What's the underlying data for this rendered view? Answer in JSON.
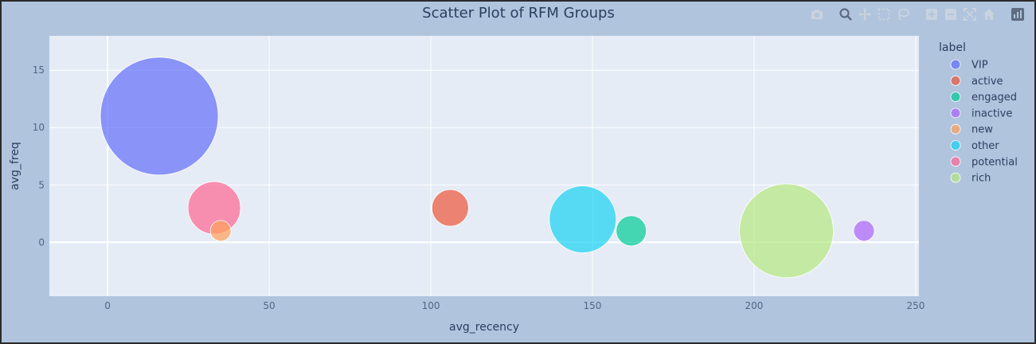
{
  "modebar": {
    "icons": [
      "camera-icon",
      "zoom-icon",
      "pan-icon",
      "box-select-icon",
      "lasso-select-icon",
      "zoom-in-icon",
      "zoom-out-icon",
      "autoscale-icon",
      "reset-axes-icon",
      "plotly-logo-icon"
    ]
  },
  "colors": {
    "paper": "#b0c4de",
    "plot_bg": "#e5ecf6",
    "grid": "#ffffff",
    "text": "#2a3f5f",
    "tick_text": "#506784",
    "modebar_icon": "#c9d3df",
    "modebar_logo": "#5e6b80"
  },
  "chart_data": {
    "type": "scatter",
    "title": "Scatter Plot of RFM Groups",
    "xlabel": "avg_recency",
    "ylabel": "avg_freq",
    "xlim": [
      -18,
      251
    ],
    "ylim": [
      -4.7,
      18
    ],
    "xticks": [
      0,
      50,
      100,
      150,
      200,
      250
    ],
    "yticks": [
      0,
      5,
      10,
      15
    ],
    "grid": true,
    "legend_title": "label",
    "legend_position": "right",
    "bubble_size_values_relative": true,
    "series": [
      {
        "name": "VIP",
        "color": "#636efa",
        "x": 16,
        "y": 11,
        "size": 74
      },
      {
        "name": "active",
        "color": "#EF553B",
        "x": 106,
        "y": 3,
        "size": 23
      },
      {
        "name": "engaged",
        "color": "#00cc96",
        "x": 162,
        "y": 1,
        "size": 19
      },
      {
        "name": "inactive",
        "color": "#ab63fa",
        "x": 234,
        "y": 1,
        "size": 13
      },
      {
        "name": "new",
        "color": "#FFA15A",
        "x": 35,
        "y": 1,
        "size": 13
      },
      {
        "name": "other",
        "color": "#19d3f3",
        "x": 147,
        "y": 2,
        "size": 42
      },
      {
        "name": "potential",
        "color": "#FF6692",
        "x": 33,
        "y": 3,
        "size": 33
      },
      {
        "name": "rich",
        "color": "#B6E880",
        "x": 210,
        "y": 1,
        "size": 59
      }
    ]
  }
}
